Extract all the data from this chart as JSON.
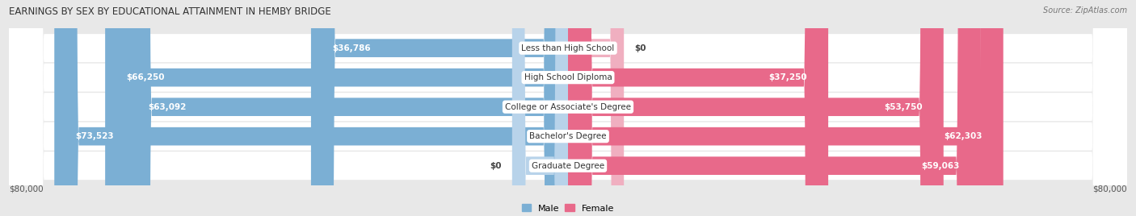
{
  "title": "EARNINGS BY SEX BY EDUCATIONAL ATTAINMENT IN HEMBY BRIDGE",
  "source": "Source: ZipAtlas.com",
  "categories": [
    "Less than High School",
    "High School Diploma",
    "College or Associate's Degree",
    "Bachelor's Degree",
    "Graduate Degree"
  ],
  "male_values": [
    36786,
    66250,
    63092,
    73523,
    0
  ],
  "female_values": [
    0,
    37250,
    53750,
    62303,
    59063
  ],
  "male_labels": [
    "$36,786",
    "$66,250",
    "$63,092",
    "$73,523",
    "$0"
  ],
  "female_labels": [
    "$0",
    "$37,250",
    "$53,750",
    "$62,303",
    "$59,063"
  ],
  "male_color": "#7bafd4",
  "female_color": "#e8698a",
  "male_color_light": "#b8d3ea",
  "female_color_light": "#f0afc0",
  "max_value": 80000,
  "x_left_label": "$80,000",
  "x_right_label": "$80,000",
  "background_color": "#e8e8e8",
  "row_bg_color": "#f2f2f2",
  "title_fontsize": 9,
  "bar_height": 0.62,
  "legend_male": "Male",
  "legend_female": "Female"
}
